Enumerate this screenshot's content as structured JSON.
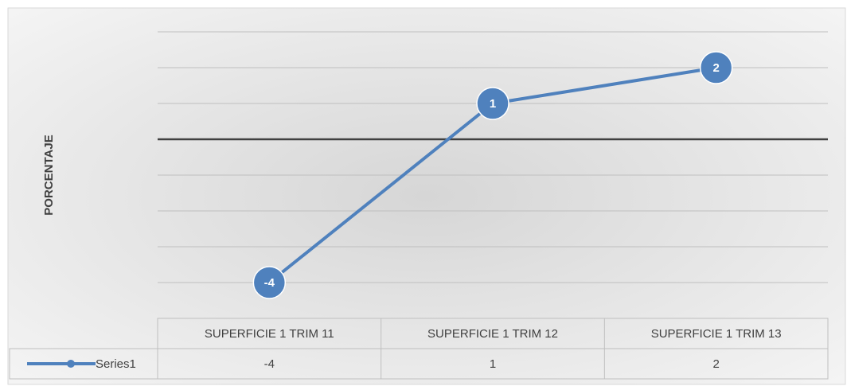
{
  "chart_data": {
    "type": "line",
    "y_label": "PORCENTAJE",
    "categories": [
      "SUPERFICIE 1 TRIM 11",
      "SUPERFICIE 1 TRIM 12",
      "SUPERFICIE 1 TRIM 13"
    ],
    "series": [
      {
        "name": "Series1",
        "color": "#4f81bd",
        "values": [
          -4,
          1,
          2
        ]
      }
    ],
    "ylim": [
      -5,
      3
    ],
    "yticks": [
      -4,
      -3,
      -2,
      -1,
      0,
      1,
      2,
      3
    ],
    "grid": true,
    "data_labels": true,
    "data_table": true
  }
}
